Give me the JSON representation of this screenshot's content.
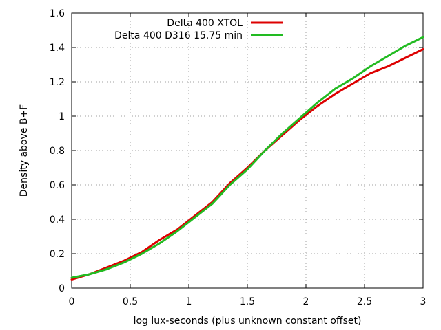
{
  "chart_data": {
    "type": "line",
    "title": "",
    "xlabel": "log lux-seconds (plus unknown constant offset)",
    "ylabel": "Density above B+F",
    "xlim": [
      0,
      3
    ],
    "ylim": [
      0,
      1.6
    ],
    "x_ticks": [
      0,
      0.5,
      1,
      1.5,
      2,
      2.5,
      3
    ],
    "x_tick_labels": [
      "0",
      "0.5",
      "1",
      "1.5",
      "2",
      "2.5",
      "3"
    ],
    "y_ticks": [
      0,
      0.2,
      0.4,
      0.6,
      0.8,
      1.0,
      1.2,
      1.4,
      1.6
    ],
    "y_tick_labels": [
      "0",
      "0.2",
      "0.4",
      "0.6",
      "0.8",
      "1",
      "1.2",
      "1.4",
      "1.6"
    ],
    "grid": true,
    "legend_position": "top-right",
    "series": [
      {
        "name": "Delta 400 XTOL",
        "color": "#dd0000",
        "x": [
          0,
          0.15,
          0.3,
          0.45,
          0.6,
          0.75,
          0.9,
          1.05,
          1.2,
          1.35,
          1.5,
          1.65,
          1.8,
          1.95,
          2.1,
          2.25,
          2.4,
          2.55,
          2.7,
          2.85,
          3.0
        ],
        "values": [
          0.05,
          0.08,
          0.12,
          0.16,
          0.21,
          0.28,
          0.34,
          0.42,
          0.5,
          0.61,
          0.7,
          0.8,
          0.89,
          0.98,
          1.06,
          1.13,
          1.19,
          1.25,
          1.29,
          1.34,
          1.39
        ]
      },
      {
        "name": "Delta 400 D316 15.75 min",
        "color": "#22bb22",
        "x": [
          0,
          0.15,
          0.3,
          0.45,
          0.6,
          0.75,
          0.9,
          1.05,
          1.2,
          1.35,
          1.5,
          1.65,
          1.8,
          1.95,
          2.1,
          2.25,
          2.4,
          2.55,
          2.7,
          2.85,
          3.0
        ],
        "values": [
          0.06,
          0.08,
          0.11,
          0.15,
          0.2,
          0.26,
          0.33,
          0.41,
          0.49,
          0.6,
          0.69,
          0.8,
          0.9,
          0.99,
          1.08,
          1.16,
          1.22,
          1.29,
          1.35,
          1.41,
          1.46
        ]
      }
    ]
  }
}
